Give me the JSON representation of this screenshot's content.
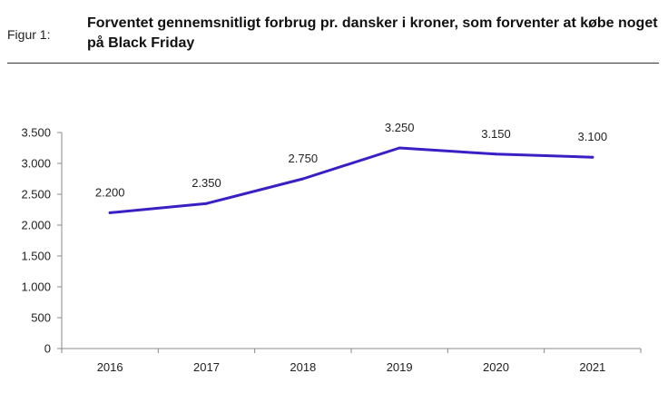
{
  "figure": {
    "label": "Figur 1:",
    "title": "Forventet gennemsnitligt forbrug pr. dansker i kroner, som forventer at købe noget på Black Friday"
  },
  "chart_data": {
    "type": "line",
    "categories": [
      "2016",
      "2017",
      "2018",
      "2019",
      "2020",
      "2021"
    ],
    "series": [
      {
        "values": [
          2200,
          2350,
          2750,
          3250,
          3150,
          3100
        ]
      }
    ],
    "data_labels": [
      "2.200",
      "2.350",
      "2.750",
      "3.250",
      "3.150",
      "3.100"
    ],
    "y_ticks": [
      0,
      500,
      1000,
      1500,
      2000,
      2500,
      3000,
      3500
    ],
    "y_tick_labels": [
      "0",
      "500",
      "1.000",
      "1.500",
      "2.000",
      "2.500",
      "3.000",
      "3.500"
    ],
    "ylim": [
      0,
      3500
    ],
    "grid": false,
    "line_color": "#3a1fc4",
    "axis_color": "#888888"
  }
}
